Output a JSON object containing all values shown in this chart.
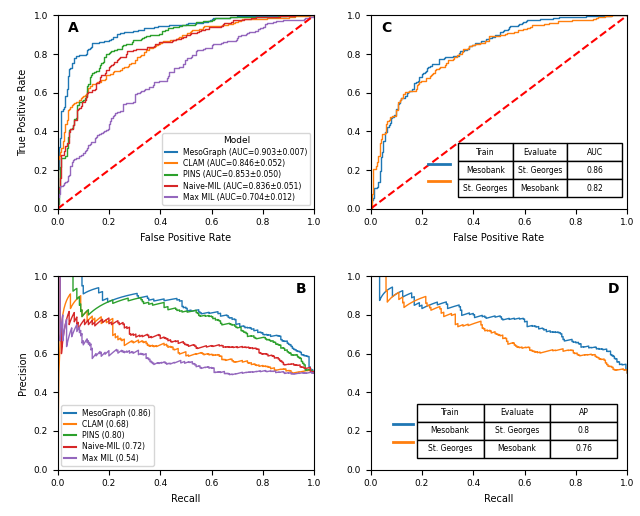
{
  "panel_A": {
    "title": "A",
    "xlabel": "False Positive Rate",
    "ylabel": "True Positive Rate",
    "models": [
      "MesoGraph",
      "CLAM",
      "PINS",
      "Naive-MIL",
      "Max MIL"
    ],
    "colors": [
      "#1f77b4",
      "#ff7f0e",
      "#2ca02c",
      "#d62728",
      "#9467bd"
    ],
    "aucs": [
      0.903,
      0.846,
      0.853,
      0.836,
      0.704
    ],
    "stds": [
      0.007,
      0.052,
      0.05,
      0.051,
      0.012
    ],
    "legend_title": "Model"
  },
  "panel_B": {
    "title": "B",
    "xlabel": "Recall",
    "ylabel": "Precision",
    "models": [
      "MesoGraph",
      "CLAM",
      "PINS",
      "Naive-MIL",
      "Max MIL"
    ],
    "colors": [
      "#1f77b4",
      "#ff7f0e",
      "#2ca02c",
      "#d62728",
      "#9467bd"
    ],
    "aps": [
      0.86,
      0.68,
      0.8,
      0.72,
      0.54
    ]
  },
  "panel_C": {
    "title": "C",
    "xlabel": "False Positive Rate",
    "ylabel": "",
    "colors": [
      "#1f77b4",
      "#ff7f0e"
    ],
    "aucs": [
      0.86,
      0.82
    ],
    "train": [
      "Mesobank",
      "St. Georges"
    ],
    "evaluate": [
      "St. Georges",
      "Mesobank"
    ]
  },
  "panel_D": {
    "title": "D",
    "xlabel": "Recall",
    "ylabel": "",
    "colors": [
      "#1f77b4",
      "#ff7f0e"
    ],
    "aps": [
      0.8,
      0.76
    ],
    "train": [
      "Mesobank",
      "St. Georges"
    ],
    "evaluate": [
      "St. Georges",
      "Mesobank"
    ]
  },
  "background_color": "#ffffff",
  "diag_color": "red",
  "diag_style": "--",
  "diag_lw": 1.5
}
